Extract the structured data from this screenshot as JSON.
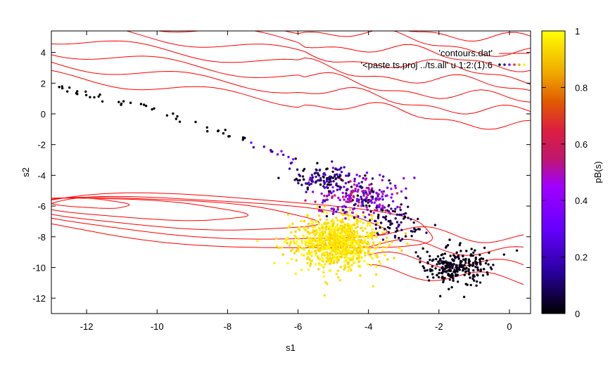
{
  "chart_data": {
    "type": "scatter",
    "title": "",
    "xlabel": "s1",
    "ylabel": "s2",
    "colorbar_label": "pB(s)",
    "xlim": [
      -13,
      0.6
    ],
    "ylim": [
      -13,
      5.4
    ],
    "clim": [
      0,
      1
    ],
    "x_ticks": [
      -12,
      -10,
      -8,
      -6,
      -4,
      -2,
      0
    ],
    "y_ticks": [
      4,
      2,
      0,
      -2,
      -4,
      -6,
      -8,
      -10,
      -12
    ],
    "colorbar_ticks": [
      0,
      0.2,
      0.4,
      0.6,
      0.8,
      1
    ],
    "grid": false,
    "legend_position": "top-right",
    "series": [
      {
        "name": "'contours.dat'",
        "kind": "contour-lines",
        "color": "#ff0000",
        "levels": [
          {
            "cx": -12,
            "cy": -5.8,
            "rx": 1.2,
            "ry": 0.3,
            "angle": -8
          },
          {
            "cx": -10.5,
            "cy": -6.2,
            "rx": 3,
            "ry": 0.6,
            "angle": -8
          },
          {
            "cx": -9.5,
            "cy": -6.5,
            "rx": 4,
            "ry": 0.9,
            "angle": -8
          },
          {
            "cx": -8.5,
            "cy": -6.8,
            "rx": 5,
            "ry": 1.2,
            "angle": -8
          },
          {
            "cx": -8,
            "cy": -7,
            "rx": 6,
            "ry": 1.6,
            "angle": -8
          }
        ]
      },
      {
        "name": "'<paste ts.proj ../ts.all' u 1:2:(1):6",
        "kind": "scatter",
        "colormap": [
          "#000000",
          "#5a00ff",
          "#a000ff",
          "#dd1f3f",
          "#e07800",
          "#ffd000",
          "#ffff00"
        ],
        "clusters": [
          {
            "cx": -1.5,
            "cy": -10.0,
            "sx": 0.45,
            "sy": 0.55,
            "n": 260,
            "c_lo": 0.0,
            "c_hi": 0.03
          },
          {
            "cx": -4.9,
            "cy": -8.4,
            "sx": 0.6,
            "sy": 0.85,
            "n": 900,
            "c_lo": 0.82,
            "c_hi": 1.0
          },
          {
            "cx": -4.2,
            "cy": -5.4,
            "sx": 0.6,
            "sy": 0.6,
            "n": 240,
            "c_lo": 0.0,
            "c_hi": 0.5
          },
          {
            "cx": -5.2,
            "cy": -4.2,
            "sx": 0.5,
            "sy": 0.4,
            "n": 120,
            "c_lo": 0.0,
            "c_hi": 0.15
          },
          {
            "cx": -3.2,
            "cy": -7.2,
            "sx": 0.4,
            "sy": 0.5,
            "n": 70,
            "c_lo": 0.0,
            "c_hi": 0.1
          }
        ],
        "trail": [
          {
            "x": -12.8,
            "y": 1.8
          },
          {
            "x": -12.5,
            "y": 1.6
          },
          {
            "x": -12.0,
            "y": 1.3
          },
          {
            "x": -11.3,
            "y": 0.8
          },
          {
            "x": -10.6,
            "y": 0.6
          },
          {
            "x": -9.8,
            "y": 0.1
          },
          {
            "x": -9.1,
            "y": -0.5
          },
          {
            "x": -8.3,
            "y": -1.1
          },
          {
            "x": -7.5,
            "y": -1.7
          },
          {
            "x": -6.9,
            "y": -2.3
          },
          {
            "x": -6.4,
            "y": -2.7
          },
          {
            "x": -6.0,
            "y": -3.1
          }
        ]
      }
    ]
  }
}
